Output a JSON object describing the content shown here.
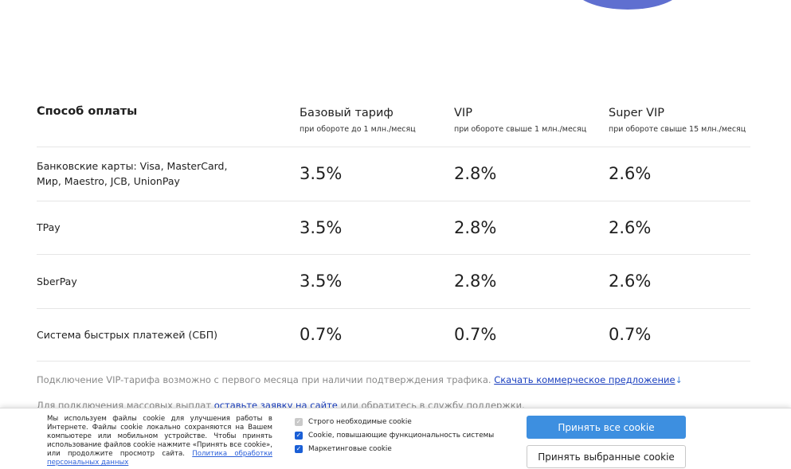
{
  "table": {
    "header": {
      "method": "Способ оплаты",
      "tiers": [
        {
          "title": "Базовый тариф",
          "sub": "при обороте до 1 млн./месяц"
        },
        {
          "title": "VIP",
          "sub": "при обороте свыше 1 млн./месяц"
        },
        {
          "title": "Super VIP",
          "sub": "при обороте свыше 15 млн./месяц"
        }
      ]
    },
    "rows": [
      {
        "label": "Банковские карты: Visa, MasterCard, Мир, Maestro, JCB, UnionPay",
        "values": [
          "3.5%",
          "2.8%",
          "2.6%"
        ]
      },
      {
        "label": "TPay",
        "values": [
          "3.5%",
          "2.8%",
          "2.6%"
        ]
      },
      {
        "label": "SberPay",
        "values": [
          "3.5%",
          "2.8%",
          "2.6%"
        ]
      },
      {
        "label": "Система быстрых платежей (СБП)",
        "values": [
          "0.7%",
          "0.7%",
          "0.7%"
        ]
      }
    ]
  },
  "notes": {
    "vip_text": "Подключение VIP-тарифа возможно с первого месяца при наличии подтверждения трафика. ",
    "vip_link": "Скачать коммерческое предложение",
    "mass_prefix": "Для подключения массовых выплат ",
    "mass_link": "оставьте заявку на сайте",
    "mass_suffix": " или обратитесь в службу поддержки."
  },
  "cookie": {
    "text": "Мы используем файлы cookie для улучшения работы в Интернете. Файлы cookie локально сохраняются на Вашем компьютере или мобильном устройстве. Чтобы принять использование файлов cookie нажмите «Принять все cookie», или продолжите просмотр сайта. ",
    "policy_link": "Политика обработки персональных данных",
    "options": [
      {
        "label": "Строго необходимые cookie",
        "checked": true,
        "disabled": true
      },
      {
        "label": "Cookie, повышающие функциональность системы",
        "checked": true,
        "disabled": false
      },
      {
        "label": "Маркетинговые cookie",
        "checked": true,
        "disabled": false
      }
    ],
    "accept_all": "Принять все cookie",
    "accept_selected": "Принять выбранные cookie"
  },
  "colors": {
    "accent": "#3d8fe0",
    "link": "#1a3fbf",
    "blob": "#5f6fd0"
  }
}
